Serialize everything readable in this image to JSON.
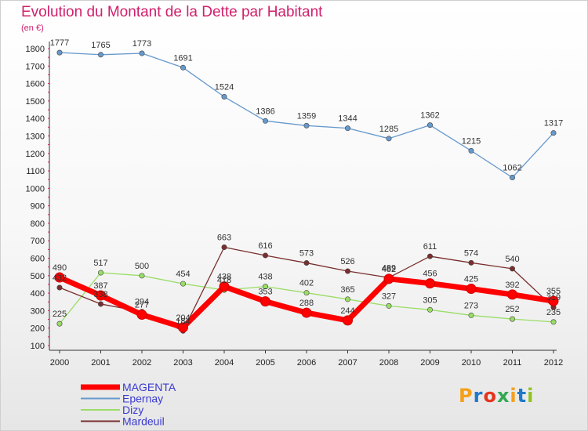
{
  "title": "Evolution du Montant de la Dette par Habitant",
  "subtitle": "(en €)",
  "logo": {
    "text": "Proxiti",
    "colors": [
      "#f5a01a",
      "#1f78c8",
      "#e8331c",
      "#32a852",
      "#f5a01a",
      "#1f78c8",
      "#8fc31f"
    ]
  },
  "chart_data": {
    "type": "line",
    "x": [
      "2000",
      "2001",
      "2002",
      "2003",
      "2004",
      "2005",
      "2006",
      "2007",
      "2008",
      "2009",
      "2010",
      "2011",
      "2012"
    ],
    "ylim": [
      100,
      1800
    ],
    "yticks": [
      100,
      200,
      300,
      400,
      500,
      600,
      700,
      800,
      900,
      1000,
      1100,
      1200,
      1300,
      1400,
      1500,
      1600,
      1700,
      1800
    ],
    "grid": false,
    "legend": "bottom-left",
    "series": [
      {
        "name": "MAGENTA",
        "color": "#ff0000",
        "values": [
          490,
          387,
          277,
          204,
          438,
          353,
          288,
          244,
          482,
          456,
          425,
          392,
          355
        ],
        "labels": [
          "490",
          "387",
          "277",
          "204",
          "438",
          "353",
          "288",
          "244",
          "482",
          "456",
          "425",
          "392",
          "355"
        ]
      },
      {
        "name": "Epernay",
        "color": "#6699cc",
        "values": [
          1777,
          1765,
          1773,
          1691,
          1524,
          1386,
          1359,
          1344,
          1285,
          1362,
          1215,
          1062,
          1317
        ],
        "labels": [
          "1777",
          "1765",
          "1773",
          "1691",
          "1524",
          "1386",
          "1359",
          "1344",
          "1285",
          "1362",
          "1215",
          "1062",
          "1317"
        ]
      },
      {
        "name": "Dizy",
        "color": "#99dd66",
        "values": [
          225,
          517,
          500,
          454,
          418,
          438,
          402,
          365,
          327,
          305,
          273,
          252,
          235
        ],
        "labels": [
          "225",
          "517",
          "500",
          "454",
          "418",
          "438",
          "402",
          "365",
          "327",
          "305",
          "273",
          "252",
          "235"
        ]
      },
      {
        "name": "Mardeuil",
        "color": "#7a2e2e",
        "values": [
          432,
          338,
          294,
          184,
          663,
          616,
          573,
          526,
          489,
          611,
          574,
          540,
          319
        ],
        "labels": [
          "432",
          "338",
          "294",
          "184",
          "663",
          "616",
          "573",
          "526",
          "489",
          "611",
          "574",
          "540",
          "319"
        ]
      }
    ]
  }
}
